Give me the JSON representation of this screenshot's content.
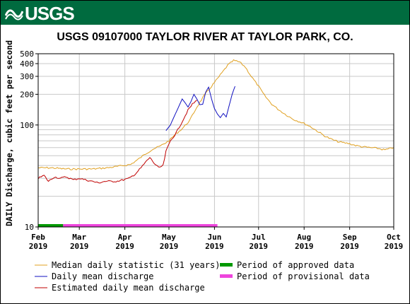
{
  "header": {
    "agency": "USGS"
  },
  "colors": {
    "banner": "#006b3f",
    "median": "#e0a020",
    "daily_mean": "#1010c0",
    "estimated": "#c00000",
    "approved": "#009900",
    "provisional": "#ee44dd",
    "grid": "#c8c8c8"
  },
  "chart_data": {
    "type": "line",
    "title": "USGS 09107000 TAYLOR RIVER AT TAYLOR PARK, CO.",
    "ylabel": "DAILY Discharge, cubic feet per second",
    "xlabel": "",
    "yscale": "log",
    "ylim": [
      10,
      500
    ],
    "yticks": [
      {
        "value": 10,
        "label": "10"
      },
      {
        "value": 100,
        "label": "100"
      },
      {
        "value": 200,
        "label": "200"
      },
      {
        "value": 300,
        "label": "300"
      },
      {
        "value": 400,
        "label": "400"
      },
      {
        "value": 500,
        "label": "500"
      }
    ],
    "grid": true,
    "xlim": [
      "2019-02-01",
      "2019-10-01"
    ],
    "xticks": [
      {
        "date": "2019-02-01",
        "month": "Feb",
        "year": "2019"
      },
      {
        "date": "2019-03-01",
        "month": "Mar",
        "year": "2019"
      },
      {
        "date": "2019-04-01",
        "month": "Apr",
        "year": "2019"
      },
      {
        "date": "2019-05-01",
        "month": "May",
        "year": "2019"
      },
      {
        "date": "2019-06-01",
        "month": "Jun",
        "year": "2019"
      },
      {
        "date": "2019-07-01",
        "month": "Jul",
        "year": "2019"
      },
      {
        "date": "2019-08-01",
        "month": "Aug",
        "year": "2019"
      },
      {
        "date": "2019-09-01",
        "month": "Sep",
        "year": "2019"
      },
      {
        "date": "2019-10-01",
        "month": "Oct",
        "year": "2019"
      }
    ],
    "legend_position": "bottom",
    "series": [
      {
        "name": "Median daily statistic (31 years)",
        "color": "#e0a020",
        "points": [
          [
            "2019-02-01",
            38
          ],
          [
            "2019-02-10",
            38
          ],
          [
            "2019-02-20",
            37
          ],
          [
            "2019-03-01",
            37
          ],
          [
            "2019-03-10",
            37
          ],
          [
            "2019-03-20",
            38
          ],
          [
            "2019-03-31",
            40
          ],
          [
            "2019-04-05",
            41
          ],
          [
            "2019-04-10",
            46
          ],
          [
            "2019-04-15",
            52
          ],
          [
            "2019-04-20",
            58
          ],
          [
            "2019-04-25",
            62
          ],
          [
            "2019-05-01",
            70
          ],
          [
            "2019-05-05",
            80
          ],
          [
            "2019-05-10",
            92
          ],
          [
            "2019-05-15",
            110
          ],
          [
            "2019-05-20",
            150
          ],
          [
            "2019-05-25",
            195
          ],
          [
            "2019-05-31",
            250
          ],
          [
            "2019-06-05",
            310
          ],
          [
            "2019-06-10",
            385
          ],
          [
            "2019-06-14",
            430
          ],
          [
            "2019-06-18",
            415
          ],
          [
            "2019-06-22",
            370
          ],
          [
            "2019-06-26",
            300
          ],
          [
            "2019-07-01",
            240
          ],
          [
            "2019-07-05",
            195
          ],
          [
            "2019-07-10",
            160
          ],
          [
            "2019-07-15",
            140
          ],
          [
            "2019-07-20",
            125
          ],
          [
            "2019-07-25",
            113
          ],
          [
            "2019-07-31",
            105
          ],
          [
            "2019-08-05",
            97
          ],
          [
            "2019-08-10",
            87
          ],
          [
            "2019-08-15",
            78
          ],
          [
            "2019-08-20",
            72
          ],
          [
            "2019-08-25",
            68
          ],
          [
            "2019-08-31",
            66
          ],
          [
            "2019-09-05",
            63
          ],
          [
            "2019-09-10",
            61
          ],
          [
            "2019-09-15",
            60
          ],
          [
            "2019-09-20",
            59
          ],
          [
            "2019-09-25",
            57
          ],
          [
            "2019-10-01",
            60
          ]
        ]
      },
      {
        "name": "Daily mean discharge",
        "color": "#1010c0",
        "points": [
          [
            "2019-04-29",
            88
          ],
          [
            "2019-05-02",
            100
          ],
          [
            "2019-05-05",
            125
          ],
          [
            "2019-05-08",
            155
          ],
          [
            "2019-05-10",
            180
          ],
          [
            "2019-05-12",
            165
          ],
          [
            "2019-05-14",
            150
          ],
          [
            "2019-05-16",
            170
          ],
          [
            "2019-05-18",
            200
          ],
          [
            "2019-05-20",
            180
          ],
          [
            "2019-05-22",
            158
          ],
          [
            "2019-05-24",
            160
          ],
          [
            "2019-05-26",
            210
          ],
          [
            "2019-05-28",
            235
          ],
          [
            "2019-05-30",
            180
          ],
          [
            "2019-06-01",
            145
          ],
          [
            "2019-06-03",
            128
          ],
          [
            "2019-06-05",
            118
          ],
          [
            "2019-06-07",
            130
          ],
          [
            "2019-06-09",
            120
          ],
          [
            "2019-06-11",
            155
          ],
          [
            "2019-06-13",
            200
          ],
          [
            "2019-06-15",
            240
          ]
        ]
      },
      {
        "name": "Estimated daily mean discharge",
        "color": "#c00000",
        "points": [
          [
            "2019-02-01",
            30
          ],
          [
            "2019-02-05",
            32
          ],
          [
            "2019-02-08",
            28
          ],
          [
            "2019-02-12",
            31
          ],
          [
            "2019-02-16",
            30
          ],
          [
            "2019-02-20",
            31
          ],
          [
            "2019-02-25",
            29
          ],
          [
            "2019-03-01",
            30
          ],
          [
            "2019-03-05",
            29
          ],
          [
            "2019-03-10",
            28
          ],
          [
            "2019-03-14",
            27
          ],
          [
            "2019-03-18",
            28
          ],
          [
            "2019-03-22",
            28
          ],
          [
            "2019-03-26",
            28
          ],
          [
            "2019-03-31",
            29
          ],
          [
            "2019-04-04",
            30
          ],
          [
            "2019-04-08",
            33
          ],
          [
            "2019-04-12",
            38
          ],
          [
            "2019-04-15",
            43
          ],
          [
            "2019-04-18",
            48
          ],
          [
            "2019-04-21",
            42
          ],
          [
            "2019-04-24",
            38
          ],
          [
            "2019-04-27",
            40
          ],
          [
            "2019-04-29",
            55
          ],
          [
            "2019-05-02",
            70
          ],
          [
            "2019-05-05",
            80
          ],
          [
            "2019-05-08",
            95
          ],
          [
            "2019-05-11",
            115
          ],
          [
            "2019-05-14",
            140
          ],
          [
            "2019-05-17",
            160
          ],
          [
            "2019-05-20",
            175
          ]
        ]
      }
    ],
    "periods": [
      {
        "name": "Period of approved data",
        "color": "#009900",
        "start": "2019-02-01",
        "end": "2019-02-18"
      },
      {
        "name": "Period of provisional data",
        "color": "#ee44dd",
        "start": "2019-02-18",
        "end": "2019-06-03"
      }
    ]
  }
}
